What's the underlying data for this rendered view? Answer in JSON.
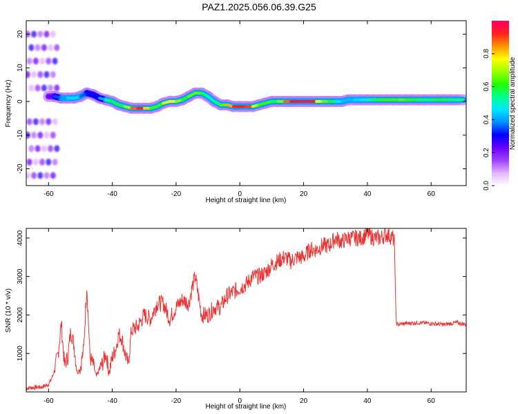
{
  "title": "PAZ1.2025.056.06.39.G25",
  "chart_data": [
    {
      "type": "heatmap",
      "xlabel": "Height of straight line (km)",
      "ylabel": "Frequency (Hz)",
      "xlim": [
        -67,
        71
      ],
      "ylim": [
        -25,
        24
      ],
      "xticks": [
        -60,
        -40,
        -20,
        0,
        20,
        40,
        60
      ],
      "yticks": [
        -20,
        -10,
        0,
        10,
        20
      ],
      "grid": false,
      "ridge": {
        "x": [
          -60,
          -58,
          -56,
          -54,
          -52,
          -50,
          -48,
          -46,
          -44,
          -42,
          -40,
          -38,
          -36,
          -34,
          -32,
          -30,
          -28,
          -26,
          -24,
          -22,
          -20,
          -18,
          -16,
          -14,
          -12,
          -10,
          -8,
          -6,
          -4,
          -2,
          0,
          2,
          4,
          6,
          8,
          10,
          12,
          14,
          16,
          18,
          20,
          22,
          24,
          26,
          28,
          30,
          32,
          34,
          36,
          38,
          40,
          42,
          44,
          46,
          48,
          50,
          52,
          54,
          56,
          58,
          60,
          62,
          64,
          66,
          68,
          70
        ],
        "y": [
          1.5,
          1.5,
          1.0,
          1.0,
          1.0,
          1.5,
          2.5,
          2.0,
          1.0,
          0.5,
          0.0,
          -1.0,
          -1.5,
          -2.0,
          -2.0,
          -2.0,
          -2.0,
          -1.5,
          -0.5,
          0.0,
          0.0,
          0.5,
          1.5,
          2.5,
          2.5,
          1.5,
          0.0,
          -1.0,
          -1.0,
          -1.5,
          -1.5,
          -1.5,
          -1.5,
          -1.0,
          -0.5,
          0.0,
          0.0,
          0.0,
          0.0,
          0.0,
          0.0,
          0.0,
          0.0,
          0.0,
          0.0,
          0.0,
          0.0,
          0.5,
          0.5,
          0.5,
          0.5,
          0.5,
          0.5,
          0.5,
          0.5,
          0.5,
          0.5,
          0.5,
          0.5,
          0.5,
          0.5,
          0.5,
          0.5,
          0.5,
          0.5,
          0.5
        ],
        "amplitude": [
          0.2,
          0.3,
          0.4,
          0.4,
          0.5,
          0.4,
          0.3,
          0.3,
          0.3,
          0.5,
          0.6,
          0.55,
          0.6,
          0.8,
          0.95,
          0.9,
          0.7,
          0.55,
          0.7,
          0.8,
          0.75,
          0.6,
          0.6,
          0.7,
          0.6,
          0.5,
          0.5,
          0.6,
          0.7,
          0.95,
          0.9,
          0.95,
          0.85,
          0.6,
          0.65,
          0.6,
          0.55,
          0.8,
          0.95,
          0.95,
          0.95,
          0.95,
          0.9,
          0.6,
          0.7,
          0.5,
          0.45,
          0.4,
          0.45,
          0.45,
          0.5,
          0.55,
          0.6,
          0.65,
          0.6,
          0.65,
          0.65,
          0.6,
          0.6,
          0.55,
          0.55,
          0.6,
          0.6,
          0.55,
          0.55,
          0.55
        ]
      },
      "colorbar": {
        "label": "Normalized spectral amplitude",
        "ticks": [
          0.0,
          0.2,
          0.4,
          0.6,
          0.8
        ],
        "range": [
          0,
          1
        ],
        "colors": [
          "#ffffff",
          "#e0b4ff",
          "#a040ff",
          "#6a00ff",
          "#0000ff",
          "#0090ff",
          "#00e5ff",
          "#00ff90",
          "#20ff00",
          "#9cff00",
          "#ffff00",
          "#ff9000",
          "#ff2020",
          "#ff0060"
        ]
      }
    },
    {
      "type": "line",
      "xlabel": "Height of straight line (km)",
      "ylabel": "SNR (10 * v/v)",
      "xlim": [
        -67,
        71
      ],
      "ylim": [
        0,
        4250
      ],
      "xticks": [
        -60,
        -40,
        -20,
        0,
        20,
        40,
        60
      ],
      "yticks": [
        1000,
        2000,
        3000,
        4000
      ],
      "grid": false,
      "series": [
        {
          "color": "#ee3030",
          "x": [
            -67,
            -64,
            -62,
            -60,
            -59,
            -58,
            -57,
            -56,
            -55,
            -54,
            -53,
            -52,
            -51,
            -50,
            -49,
            -48,
            -47,
            -46,
            -45,
            -44,
            -43,
            -42,
            -41,
            -40,
            -39,
            -38,
            -37,
            -36,
            -35,
            -34,
            -32,
            -30,
            -28,
            -26,
            -24,
            -22,
            -20,
            -18,
            -16,
            -15,
            -14,
            -12,
            -10,
            -8,
            -6,
            -4,
            -2,
            0,
            2,
            4,
            6,
            8,
            10,
            12,
            14,
            16,
            18,
            20,
            22,
            24,
            26,
            28,
            30,
            32,
            34,
            36,
            38,
            40,
            42,
            44,
            46,
            48,
            48.5,
            49,
            49.5,
            52,
            56,
            60,
            64,
            68,
            71
          ],
          "y": [
            100,
            120,
            130,
            200,
            350,
            600,
            1000,
            1780,
            700,
            900,
            1600,
            1200,
            500,
            650,
            1100,
            2780,
            900,
            700,
            400,
            600,
            750,
            1000,
            500,
            900,
            1100,
            1500,
            1400,
            1000,
            700,
            1600,
            1700,
            2000,
            1900,
            2300,
            2300,
            1900,
            2200,
            2400,
            2300,
            2700,
            3000,
            2000,
            2000,
            2200,
            2200,
            2500,
            2600,
            2700,
            2800,
            3000,
            3000,
            3100,
            3300,
            3400,
            3500,
            3400,
            3500,
            3500,
            3700,
            3700,
            3800,
            3800,
            4000,
            3900,
            4000,
            4000,
            4000,
            4100,
            4000,
            4000,
            4100,
            4000,
            3900,
            1800,
            1750,
            1780,
            1800,
            1780,
            1750,
            1800,
            1750
          ]
        }
      ]
    }
  ]
}
